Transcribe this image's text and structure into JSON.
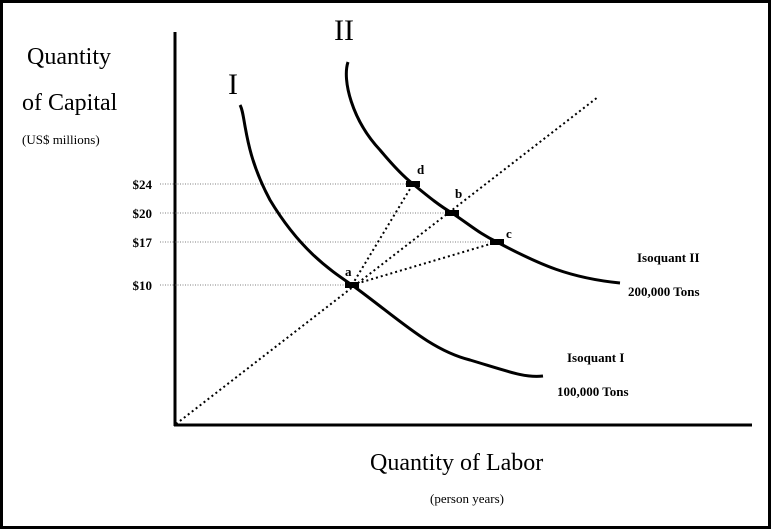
{
  "y_axis": {
    "title_lines": [
      "Quantity",
      "of Capital"
    ],
    "unit": "(US$ millions)",
    "ticks": [
      "$24",
      "$20",
      "$17",
      "$10"
    ]
  },
  "x_axis": {
    "title": "Quantity of Labor",
    "unit": "(person years)"
  },
  "curves": [
    {
      "label": "I",
      "name": "Isoquant I",
      "output": "100,000 Tons"
    },
    {
      "label": "II",
      "name": "Isoquant II",
      "output": "200,000 Tons"
    }
  ],
  "points": [
    "a",
    "b",
    "c",
    "d"
  ]
}
